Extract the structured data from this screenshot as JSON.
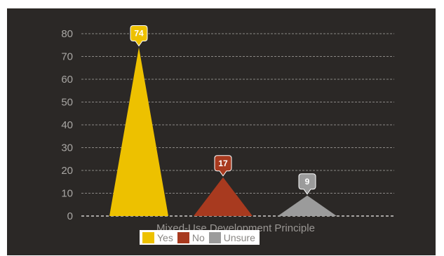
{
  "chart_data": {
    "type": "area",
    "title": "",
    "xlabel": "Mixed-Use Development Principle",
    "ylabel": "",
    "ylim": [
      0,
      80
    ],
    "yticks": [
      0,
      10,
      20,
      30,
      40,
      50,
      60,
      70,
      80
    ],
    "grid": true,
    "legend_position": "bottom",
    "categories": [
      "Yes",
      "No",
      "Unsure"
    ],
    "values": [
      74,
      17,
      9
    ],
    "colors": [
      "#edc100",
      "#a83a1f",
      "#9b9b9b"
    ]
  }
}
